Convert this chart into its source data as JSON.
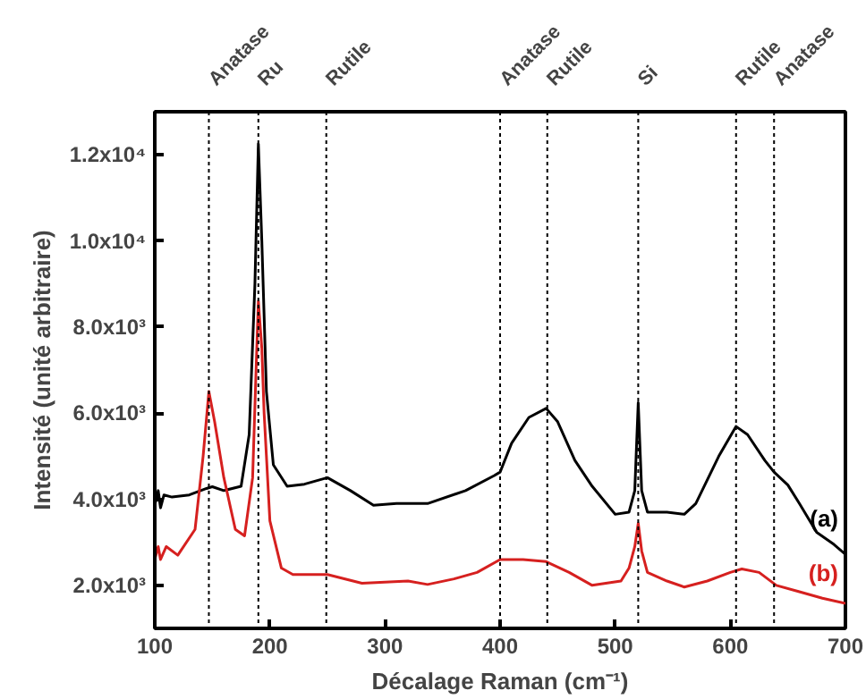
{
  "chart_data": {
    "type": "line",
    "xlabel": "Décalage Raman (cm⁻¹)",
    "ylabel": "Intensité (unité arbitraire)",
    "xlim": [
      100,
      700
    ],
    "xticks": [
      100,
      200,
      300,
      400,
      500,
      600,
      700
    ],
    "ylim": [
      1000,
      13000
    ],
    "yticks": [
      {
        "value": 2000,
        "label": "2.0x10³"
      },
      {
        "value": 4000,
        "label": "4.0x10³"
      },
      {
        "value": 6000,
        "label": "6.0x10³"
      },
      {
        "value": 8000,
        "label": "8.0x10³"
      },
      {
        "value": 10000,
        "label": "1.0x10⁴"
      },
      {
        "value": 12000,
        "label": "1.2x10⁴"
      }
    ],
    "grid": false,
    "series": [
      {
        "name": "(a)",
        "color": "#000000",
        "x": [
          100,
          103,
          105,
          108,
          115,
          130,
          145,
          150,
          160,
          175,
          182,
          187,
          190,
          193,
          197,
          203,
          215,
          230,
          250,
          270,
          290,
          310,
          337,
          370,
          395,
          400,
          410,
          425,
          440,
          450,
          465,
          480,
          500,
          512,
          517,
          520,
          523,
          528,
          545,
          560,
          570,
          590,
          605,
          615,
          630,
          638,
          650,
          660,
          675,
          690,
          700
        ],
        "values": [
          3860,
          4200,
          3800,
          4100,
          4050,
          4100,
          4250,
          4290,
          4200,
          4300,
          5500,
          9000,
          12250,
          10000,
          6500,
          4800,
          4300,
          4350,
          4500,
          4200,
          3860,
          3900,
          3900,
          4200,
          4550,
          4630,
          5300,
          5900,
          6110,
          5800,
          4900,
          4300,
          3650,
          3700,
          4200,
          6240,
          4200,
          3700,
          3700,
          3650,
          3900,
          5000,
          5690,
          5500,
          4900,
          4630,
          4330,
          3900,
          3230,
          2950,
          2720
        ]
      },
      {
        "name": "(b)",
        "color": "#d6201f",
        "x": [
          100,
          103,
          105,
          110,
          120,
          135,
          142,
          147,
          152,
          160,
          170,
          178,
          185,
          188,
          190,
          193,
          195,
          200,
          210,
          220,
          250,
          280,
          320,
          337,
          360,
          380,
          400,
          420,
          440,
          460,
          480,
          505,
          512,
          517,
          520,
          523,
          528,
          545,
          560,
          580,
          600,
          610,
          625,
          640,
          660,
          680,
          700
        ],
        "values": [
          2600,
          2900,
          2600,
          2900,
          2700,
          3300,
          5000,
          6500,
          5800,
          4500,
          3300,
          3150,
          4500,
          7000,
          8600,
          7500,
          6000,
          3500,
          2400,
          2250,
          2250,
          2050,
          2100,
          2020,
          2150,
          2300,
          2600,
          2600,
          2550,
          2300,
          2000,
          2100,
          2400,
          2900,
          3440,
          2800,
          2300,
          2100,
          1960,
          2100,
          2300,
          2380,
          2300,
          2000,
          1850,
          1700,
          1580
        ]
      }
    ],
    "ref_lines": [
      {
        "axis": "x",
        "value": 147,
        "label": "Anatase",
        "color": "#000000",
        "line_style": "dotted"
      },
      {
        "axis": "x",
        "value": 190,
        "label": "Ru",
        "color": "#000000",
        "line_style": "dotted"
      },
      {
        "axis": "x",
        "value": 249,
        "label": "Rutile",
        "color": "#000000",
        "line_style": "dotted"
      },
      {
        "axis": "x",
        "value": 400,
        "label": "Anatase",
        "color": "#000000",
        "line_style": "dotted"
      },
      {
        "axis": "x",
        "value": 441,
        "label": "Rutile",
        "color": "#000000",
        "line_style": "dotted"
      },
      {
        "axis": "x",
        "value": 520,
        "label": "Si",
        "color": "#000000",
        "line_style": "dotted"
      },
      {
        "axis": "x",
        "value": 605,
        "label": "Rutile",
        "color": "#000000",
        "line_style": "dotted"
      },
      {
        "axis": "x",
        "value": 638,
        "label": "Anatase",
        "color": "#000000",
        "line_style": "dotted"
      }
    ]
  }
}
